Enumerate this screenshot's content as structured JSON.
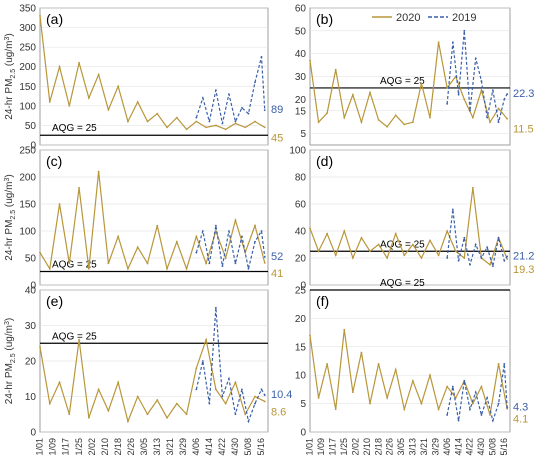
{
  "legend": {
    "entries": [
      {
        "label": "2020",
        "color": "#b8963a",
        "dash": "solid"
      },
      {
        "label": "2019",
        "color": "#3a5fa8",
        "dash": "dashed"
      }
    ],
    "placement": "top-right"
  },
  "ylabel_main": "24-hr PM",
  "ylabel_sub": "2.5",
  "ylabel_unit": " (ug/m",
  "ylabel_sup": "3",
  "ylabel_close": ")",
  "xticks": [
    "1/01",
    "1/09",
    "1/17",
    "1/25",
    "2/02",
    "2/10",
    "2/18",
    "2/26",
    "3/05",
    "3/13",
    "3/21",
    "3/29",
    "4/06",
    "4/14",
    "4/22",
    "4/30",
    "5/08",
    "5/16"
  ],
  "colors": {
    "series2020": "#b8963a",
    "series2019": "#3a5fa8",
    "aqg_line": "#000000",
    "grid": "#dddddd",
    "axis": "#888888"
  },
  "chart_data": [
    {
      "type": "line",
      "panel_label": "(a)",
      "ylim": [
        0,
        350
      ],
      "yticks": [
        0,
        50,
        100,
        150,
        200,
        250,
        300,
        350
      ],
      "aqg_value": 25,
      "aqg_label": "AQG = 25",
      "x_range": [
        "1/01",
        "5/20"
      ],
      "end_labels": {
        "2019": "89",
        "2020": "45"
      },
      "series": [
        {
          "name": "2020",
          "x": [
            0,
            6,
            12,
            18,
            24,
            30,
            36,
            42,
            48,
            54,
            60,
            66,
            72,
            78,
            84,
            90,
            96,
            102,
            108,
            114,
            120,
            126,
            132,
            138
          ],
          "values": [
            330,
            110,
            200,
            100,
            210,
            120,
            180,
            90,
            150,
            60,
            110,
            60,
            80,
            45,
            70,
            40,
            60,
            45,
            50,
            40,
            55,
            45,
            60,
            45
          ]
        },
        {
          "name": "2019",
          "x": [
            96,
            100,
            104,
            108,
            112,
            116,
            120,
            124,
            128,
            132,
            136,
            138
          ],
          "values": [
            70,
            120,
            60,
            140,
            55,
            130,
            60,
            95,
            80,
            160,
            225,
            89
          ]
        }
      ]
    },
    {
      "type": "line",
      "panel_label": "(b)",
      "ylim": [
        0,
        60
      ],
      "yticks": [
        5,
        15,
        20,
        30,
        40,
        50,
        60
      ],
      "aqg_value": 25,
      "aqg_label": "AQG = 25",
      "x_range": [
        "1/01",
        "5/20"
      ],
      "end_labels": {
        "2019": "22.3",
        "2020": "11.5"
      },
      "series": [
        {
          "name": "2020",
          "x": [
            0,
            6,
            12,
            18,
            24,
            30,
            36,
            42,
            48,
            54,
            60,
            66,
            72,
            78,
            84,
            90,
            96,
            102,
            108,
            114,
            120,
            126,
            132,
            138
          ],
          "values": [
            37,
            10,
            14,
            33,
            12,
            22,
            10,
            23,
            11,
            8,
            13,
            9,
            10,
            27,
            12,
            45,
            25,
            30,
            20,
            12,
            24,
            10,
            16,
            11.5
          ]
        },
        {
          "name": "2019",
          "x": [
            96,
            100,
            104,
            108,
            112,
            116,
            120,
            124,
            128,
            132,
            136,
            138
          ],
          "values": [
            18,
            45,
            22,
            50,
            15,
            38,
            28,
            12,
            24,
            10,
            20,
            22.3
          ]
        }
      ]
    },
    {
      "type": "line",
      "panel_label": "(c)",
      "ylim": [
        0,
        250
      ],
      "yticks": [
        0,
        50,
        100,
        150,
        200,
        250
      ],
      "aqg_value": 25,
      "aqg_label": "AQG = 25",
      "x_range": [
        "1/01",
        "5/20"
      ],
      "end_labels": {
        "2019": "52",
        "2020": "41"
      },
      "series": [
        {
          "name": "2020",
          "x": [
            0,
            6,
            12,
            18,
            24,
            30,
            36,
            42,
            48,
            54,
            60,
            66,
            72,
            78,
            84,
            90,
            96,
            102,
            108,
            114,
            120,
            126,
            132,
            138
          ],
          "values": [
            60,
            30,
            150,
            40,
            180,
            30,
            210,
            40,
            90,
            30,
            70,
            40,
            110,
            30,
            80,
            30,
            90,
            40,
            100,
            50,
            120,
            60,
            110,
            41
          ]
        },
        {
          "name": "2019",
          "x": [
            96,
            100,
            104,
            108,
            112,
            116,
            120,
            124,
            128,
            132,
            136,
            138
          ],
          "values": [
            60,
            100,
            40,
            110,
            35,
            100,
            40,
            90,
            30,
            80,
            100,
            52
          ]
        }
      ]
    },
    {
      "type": "line",
      "panel_label": "(d)",
      "ylim": [
        0,
        100
      ],
      "yticks": [
        0,
        20,
        40,
        60,
        80,
        100
      ],
      "aqg_value": 25,
      "aqg_label": "AQG = 25",
      "x_range": [
        "1/01",
        "5/20"
      ],
      "end_labels": {
        "2019": "21.2",
        "2020": "19.3"
      },
      "series": [
        {
          "name": "2020",
          "x": [
            0,
            6,
            12,
            18,
            24,
            30,
            36,
            42,
            48,
            54,
            60,
            66,
            72,
            78,
            84,
            90,
            96,
            102,
            108,
            114,
            120,
            126,
            132,
            138
          ],
          "values": [
            42,
            25,
            38,
            22,
            40,
            20,
            35,
            25,
            30,
            20,
            38,
            22,
            30,
            20,
            33,
            22,
            40,
            25,
            20,
            72,
            20,
            15,
            35,
            19.3
          ]
        },
        {
          "name": "2019",
          "x": [
            96,
            100,
            104,
            108,
            112,
            116,
            120,
            124,
            128,
            132,
            136,
            138
          ],
          "values": [
            20,
            56,
            18,
            35,
            15,
            30,
            20,
            28,
            14,
            35,
            18,
            21.2
          ]
        }
      ]
    },
    {
      "type": "line",
      "panel_label": "(e)",
      "ylim": [
        0,
        40
      ],
      "yticks": [
        0,
        10,
        20,
        30,
        40
      ],
      "aqg_value": 25,
      "aqg_label": "AQG = 25",
      "x_range": [
        "1/01",
        "5/20"
      ],
      "end_labels": {
        "2019": "10.4",
        "2020": "8.6"
      },
      "series": [
        {
          "name": "2020",
          "x": [
            0,
            6,
            12,
            18,
            24,
            30,
            36,
            42,
            48,
            54,
            60,
            66,
            72,
            78,
            84,
            90,
            96,
            102,
            108,
            114,
            120,
            126,
            132,
            138
          ],
          "values": [
            24,
            8,
            14,
            5,
            26,
            4,
            12,
            6,
            14,
            3,
            10,
            5,
            9,
            4,
            8,
            5,
            18,
            26,
            12,
            8,
            14,
            5,
            10,
            8.6
          ]
        },
        {
          "name": "2019",
          "x": [
            96,
            100,
            104,
            108,
            112,
            116,
            120,
            124,
            128,
            132,
            136,
            138
          ],
          "values": [
            12,
            20,
            8,
            35,
            10,
            15,
            5,
            12,
            3,
            8,
            12,
            10.4
          ]
        }
      ]
    },
    {
      "type": "line",
      "panel_label": "(f)",
      "ylim": [
        0,
        25
      ],
      "yticks": [
        0,
        5,
        10,
        15,
        20,
        25
      ],
      "aqg_value": 25,
      "aqg_label": "AQG = 25",
      "x_range": [
        "1/01",
        "5/20"
      ],
      "end_labels": {
        "2019": "4.3",
        "2020": "4.1"
      },
      "series": [
        {
          "name": "2020",
          "x": [
            0,
            6,
            12,
            18,
            24,
            30,
            36,
            42,
            48,
            54,
            60,
            66,
            72,
            78,
            84,
            90,
            96,
            102,
            108,
            114,
            120,
            126,
            132,
            138
          ],
          "values": [
            17,
            6,
            12,
            4,
            18,
            7,
            14,
            5,
            12,
            6,
            11,
            4,
            9,
            5,
            10,
            4,
            8,
            6,
            9,
            5,
            8,
            3,
            12,
            4.1
          ]
        },
        {
          "name": "2019",
          "x": [
            96,
            100,
            104,
            108,
            112,
            116,
            120,
            124,
            128,
            132,
            136,
            138
          ],
          "values": [
            3,
            8,
            2,
            9,
            4,
            7,
            3,
            6,
            2,
            5,
            12,
            4.3
          ]
        }
      ]
    }
  ]
}
